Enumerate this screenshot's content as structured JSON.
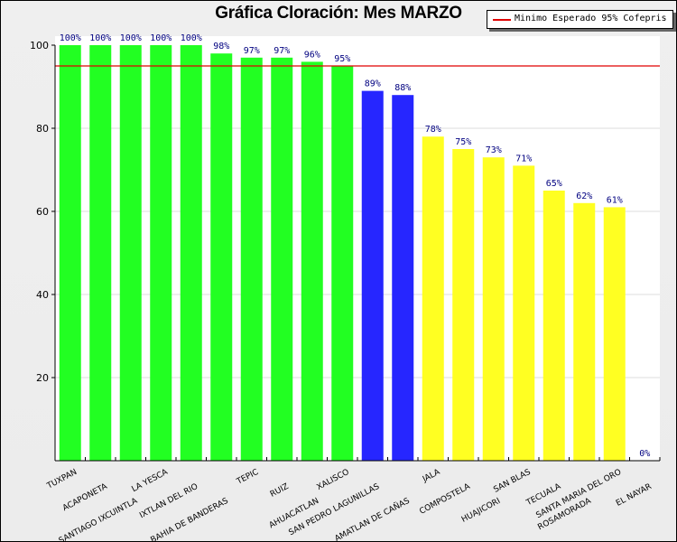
{
  "chart_data": {
    "type": "bar",
    "title": "Gráfica Cloración: Mes MARZO",
    "xlabel": "",
    "ylabel": "",
    "ylim": [
      0,
      100
    ],
    "yticks": [
      20,
      40,
      60,
      80,
      100
    ],
    "grid": true,
    "categories": [
      "TUXPAN",
      "ACAPONETA",
      "SANTIAGO IXCUINTLA",
      "LA YESCA",
      "IXTLAN DEL RIO",
      "BAHIA DE BANDERAS",
      "TEPIC",
      "RUIZ",
      "AHUACATLAN",
      "XALISCO",
      "SAN PEDRO LAGUNILLAS",
      "AMATLAN DE CAÑAS",
      "JALA",
      "COMPOSTELA",
      "HUAJICORI",
      "SAN BLAS",
      "TECUALA",
      "ROSAMORADA",
      "SANTA MARIA DEL ORO",
      "EL NAYAR"
    ],
    "values": [
      100,
      100,
      100,
      100,
      100,
      98,
      97,
      97,
      96,
      95,
      89,
      88,
      78,
      75,
      73,
      71,
      65,
      62,
      61,
      0
    ],
    "value_labels": [
      "100%",
      "100%",
      "100%",
      "100%",
      "100%",
      "98%",
      "97%",
      "97%",
      "96%",
      "95%",
      "89%",
      "88%",
      "78%",
      "75%",
      "73%",
      "71%",
      "65%",
      "62%",
      "61%",
      "0%"
    ],
    "bar_colors": [
      "#22ff22",
      "#22ff22",
      "#22ff22",
      "#22ff22",
      "#22ff22",
      "#22ff22",
      "#22ff22",
      "#22ff22",
      "#22ff22",
      "#22ff22",
      "#2626ff",
      "#2626ff",
      "#ffff22",
      "#ffff22",
      "#ffff22",
      "#ffff22",
      "#ffff22",
      "#ffff22",
      "#ffff22",
      "#ffff22"
    ],
    "reference_line": {
      "value": 95,
      "label": "Minimo Esperado 95% Cofepris",
      "color": "#e00000"
    },
    "legend": {
      "position": "top-right",
      "entries": [
        "Minimo Esperado 95% Cofepris"
      ]
    }
  }
}
